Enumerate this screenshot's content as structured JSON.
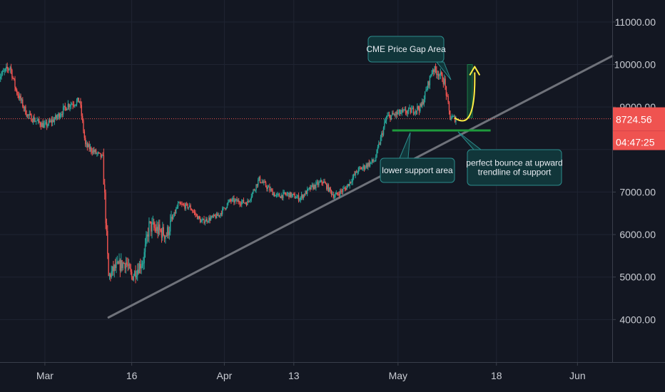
{
  "chart_data": {
    "type": "candlestick",
    "y_axis": {
      "min": 3000,
      "max": 11400,
      "ticks": [
        {
          "value": 4000,
          "label": "4000.00"
        },
        {
          "value": 5000,
          "label": "5000.00"
        },
        {
          "value": 6000,
          "label": "6000.00"
        },
        {
          "value": 7000,
          "label": "7000.00"
        },
        {
          "value": 9000,
          "label": "9000.00"
        },
        {
          "value": 10000,
          "label": "10000.00"
        },
        {
          "value": 11000,
          "label": "11000.00"
        }
      ]
    },
    "x_axis": {
      "start": "2020-02-22",
      "end": "2020-06-07",
      "ticks": [
        {
          "date": "2020-03-01",
          "label": "Mar"
        },
        {
          "date": "2020-03-16",
          "label": "16"
        },
        {
          "date": "2020-04-01",
          "label": "Apr"
        },
        {
          "date": "2020-04-13",
          "label": "13"
        },
        {
          "date": "2020-05-01",
          "label": "May"
        },
        {
          "date": "2020-05-18",
          "label": "18"
        },
        {
          "date": "2020-06-01",
          "label": "Jun"
        }
      ]
    },
    "last_price": {
      "value": 8724.56,
      "label": "8724.56",
      "countdown": "04:47:25"
    },
    "candle_anchors": [
      [
        "2020-02-22",
        9700
      ],
      [
        "2020-02-24",
        9950
      ],
      [
        "2020-02-25",
        9400
      ],
      [
        "2020-02-27",
        8800
      ],
      [
        "2020-03-01",
        8550
      ],
      [
        "2020-03-03",
        8750
      ],
      [
        "2020-03-05",
        9050
      ],
      [
        "2020-03-07",
        9150
      ],
      [
        "2020-03-08",
        8100
      ],
      [
        "2020-03-10",
        7900
      ],
      [
        "2020-03-11",
        7800
      ],
      [
        "2020-03-12",
        5000
      ],
      [
        "2020-03-13",
        5200
      ],
      [
        "2020-03-15",
        5350
      ],
      [
        "2020-03-16",
        5000
      ],
      [
        "2020-03-18",
        5400
      ],
      [
        "2020-03-19",
        6200
      ],
      [
        "2020-03-22",
        6000
      ],
      [
        "2020-03-24",
        6700
      ],
      [
        "2020-03-26",
        6650
      ],
      [
        "2020-03-28",
        6300
      ],
      [
        "2020-03-31",
        6450
      ],
      [
        "2020-04-02",
        6800
      ],
      [
        "2020-04-05",
        6750
      ],
      [
        "2020-04-07",
        7300
      ],
      [
        "2020-04-10",
        6900
      ],
      [
        "2020-04-12",
        6950
      ],
      [
        "2020-04-14",
        6850
      ],
      [
        "2020-04-16",
        7100
      ],
      [
        "2020-04-18",
        7250
      ],
      [
        "2020-04-20",
        6900
      ],
      [
        "2020-04-22",
        7100
      ],
      [
        "2020-04-24",
        7500
      ],
      [
        "2020-04-27",
        7750
      ],
      [
        "2020-04-29",
        8750
      ],
      [
        "2020-05-01",
        8850
      ],
      [
        "2020-05-03",
        8900
      ],
      [
        "2020-05-05",
        9000
      ],
      [
        "2020-05-07",
        9900
      ],
      [
        "2020-05-08",
        9800
      ],
      [
        "2020-05-09",
        9600
      ],
      [
        "2020-05-10",
        8750
      ],
      [
        "2020-05-11",
        8724.56
      ]
    ],
    "trendline": {
      "from": [
        "2020-03-12",
        4050
      ],
      "to": [
        "2020-06-07",
        10200
      ]
    },
    "support_line": {
      "from": [
        "2020-04-30",
        8450
      ],
      "to": [
        "2020-05-17",
        8450
      ],
      "color": "#1e9a3c"
    },
    "gap_area": {
      "date": "2020-05-12",
      "low": 8750,
      "high": 10000
    },
    "bounce_arrow": {
      "from": [
        "2020-05-11",
        8750
      ],
      "to": [
        "2020-05-14",
        9950
      ],
      "color": "#ffee44"
    },
    "annotations": [
      {
        "id": "cme-gap",
        "text": [
          "CME Price Gap Area"
        ]
      },
      {
        "id": "lower-support",
        "text": [
          "lower support area"
        ]
      },
      {
        "id": "bounce",
        "text": [
          "perfect bounce at upward",
          "trendline of support"
        ]
      }
    ],
    "colors": {
      "background": "#131722",
      "grid": "#1f2432",
      "up": "#26a69a",
      "down": "#ef5350",
      "trendline": "#6f727a",
      "price_line": "#ef5350",
      "annotation_fill": "#11363a",
      "annotation_border": "#2c8c8c",
      "axis_text": "#c9ccd3"
    }
  }
}
